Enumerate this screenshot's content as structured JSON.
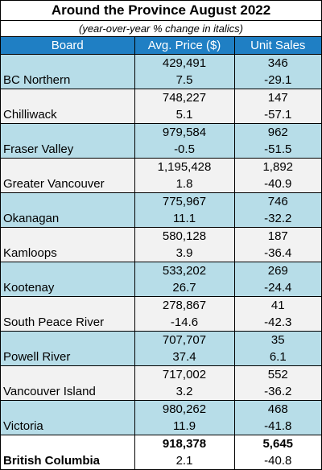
{
  "title": "Around the Province August 2022",
  "subtitle": "(year-over-year % change in italics)",
  "columns": [
    "Board",
    "Avg. Price ($)",
    "Unit Sales"
  ],
  "rows": [
    {
      "board": "BC Northern",
      "price": "429,491",
      "price_change": "7.5",
      "units": "346",
      "units_change": "-29.1"
    },
    {
      "board": "Chilliwack",
      "price": "748,227",
      "price_change": "5.1",
      "units": "147",
      "units_change": "-57.1"
    },
    {
      "board": "Fraser Valley",
      "price": "979,584",
      "price_change": "-0.5",
      "units": "962",
      "units_change": "-51.5"
    },
    {
      "board": "Greater Vancouver",
      "price": "1,195,428",
      "price_change": "1.8",
      "units": "1,892",
      "units_change": "-40.9"
    },
    {
      "board": "Okanagan",
      "price": "775,967",
      "price_change": "11.1",
      "units": "746",
      "units_change": "-32.2"
    },
    {
      "board": "Kamloops",
      "price": "580,128",
      "price_change": "3.9",
      "units": "187",
      "units_change": "-36.4"
    },
    {
      "board": "Kootenay",
      "price": "533,202",
      "price_change": "26.7",
      "units": "269",
      "units_change": "-24.4"
    },
    {
      "board": "South Peace River",
      "price": "278,867",
      "price_change": "-14.6",
      "units": "41",
      "units_change": "-42.3"
    },
    {
      "board": "Powell River",
      "price": "707,707",
      "price_change": "37.4",
      "units": "35",
      "units_change": "6.1"
    },
    {
      "board": "Vancouver Island",
      "price": "717,002",
      "price_change": "3.2",
      "units": "552",
      "units_change": "-36.2"
    },
    {
      "board": "Victoria",
      "price": "980,262",
      "price_change": "11.9",
      "units": "468",
      "units_change": "-41.8"
    }
  ],
  "total": {
    "board": "British Columbia",
    "price": "918,378",
    "price_change": "2.1",
    "units": "5,645",
    "units_change": "-40.8"
  },
  "colors": {
    "header": "#1f7fc4",
    "shade": "#b7dde8",
    "plain": "#f2f2f2"
  }
}
